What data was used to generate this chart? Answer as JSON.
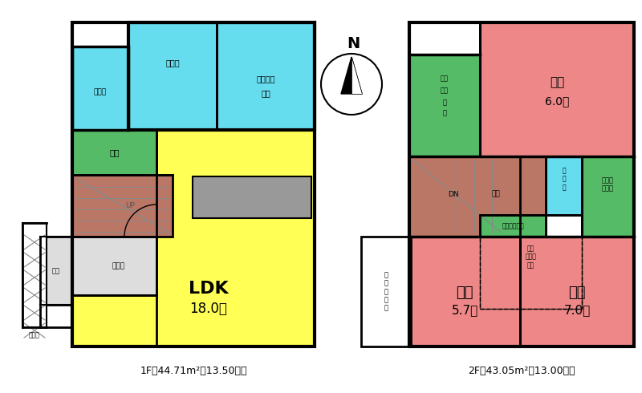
{
  "bg_color": "#ffffff",
  "ldk_color": "#ffff55",
  "cyan_color": "#66ddee",
  "pink_color": "#ee8888",
  "green_color": "#55bb66",
  "brown_color": "#bb7766",
  "gray_color": "#bbbbbb",
  "light_gray": "#dddddd",
  "hatched_gray": "#cccccc",
  "kitchen_color": "#999999",
  "footer_1f": "1F：44.71m²（13.50坤）",
  "footer_2f": "2F：43.05m²（13.00坤）",
  "north_label": "N"
}
